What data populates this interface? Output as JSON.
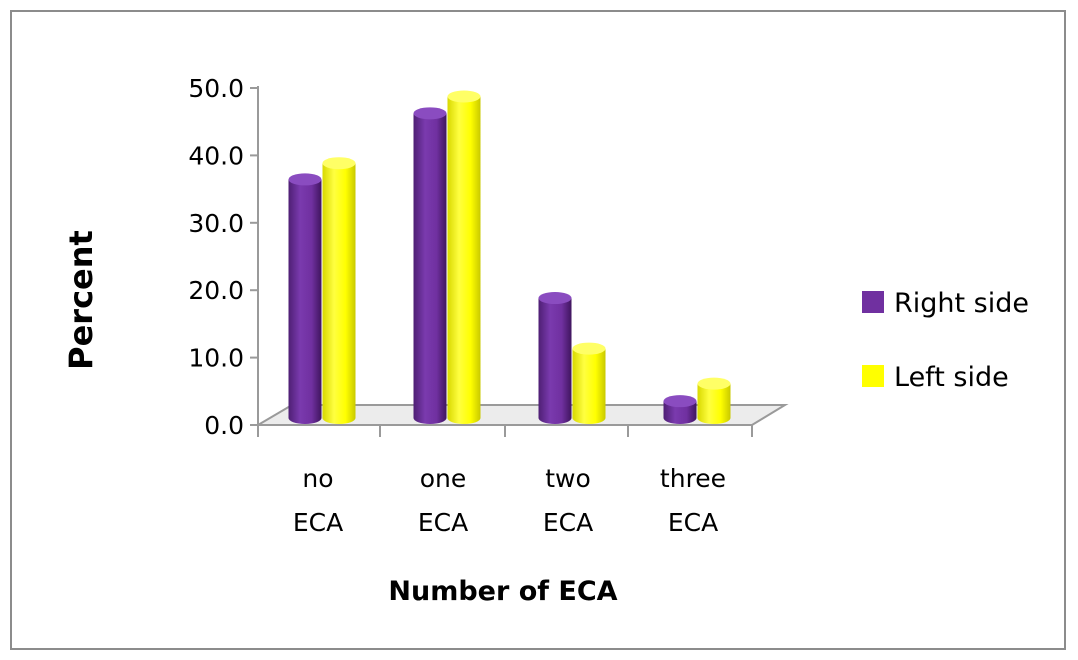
{
  "chart_data": {
    "type": "bar",
    "categories": [
      [
        "no",
        "ECA"
      ],
      [
        "one",
        "ECA"
      ],
      [
        "two",
        "ECA"
      ],
      [
        "three",
        "ECA"
      ]
    ],
    "series": [
      {
        "name": "Right side",
        "values": [
          35.4,
          45.2,
          17.8,
          2.5
        ],
        "color": "#7030a0"
      },
      {
        "name": "Left side",
        "values": [
          37.8,
          47.7,
          10.3,
          5.1
        ],
        "color": "#ffff00"
      }
    ],
    "xlabel": "Number of ECA",
    "ylabel": "Percent",
    "ylim": [
      0,
      50
    ],
    "yticks": [
      "0.0",
      "10.0",
      "20.0",
      "30.0",
      "40.0",
      "50.0"
    ],
    "legend_position": "right",
    "grid": false,
    "style": "3d-cylinder"
  }
}
